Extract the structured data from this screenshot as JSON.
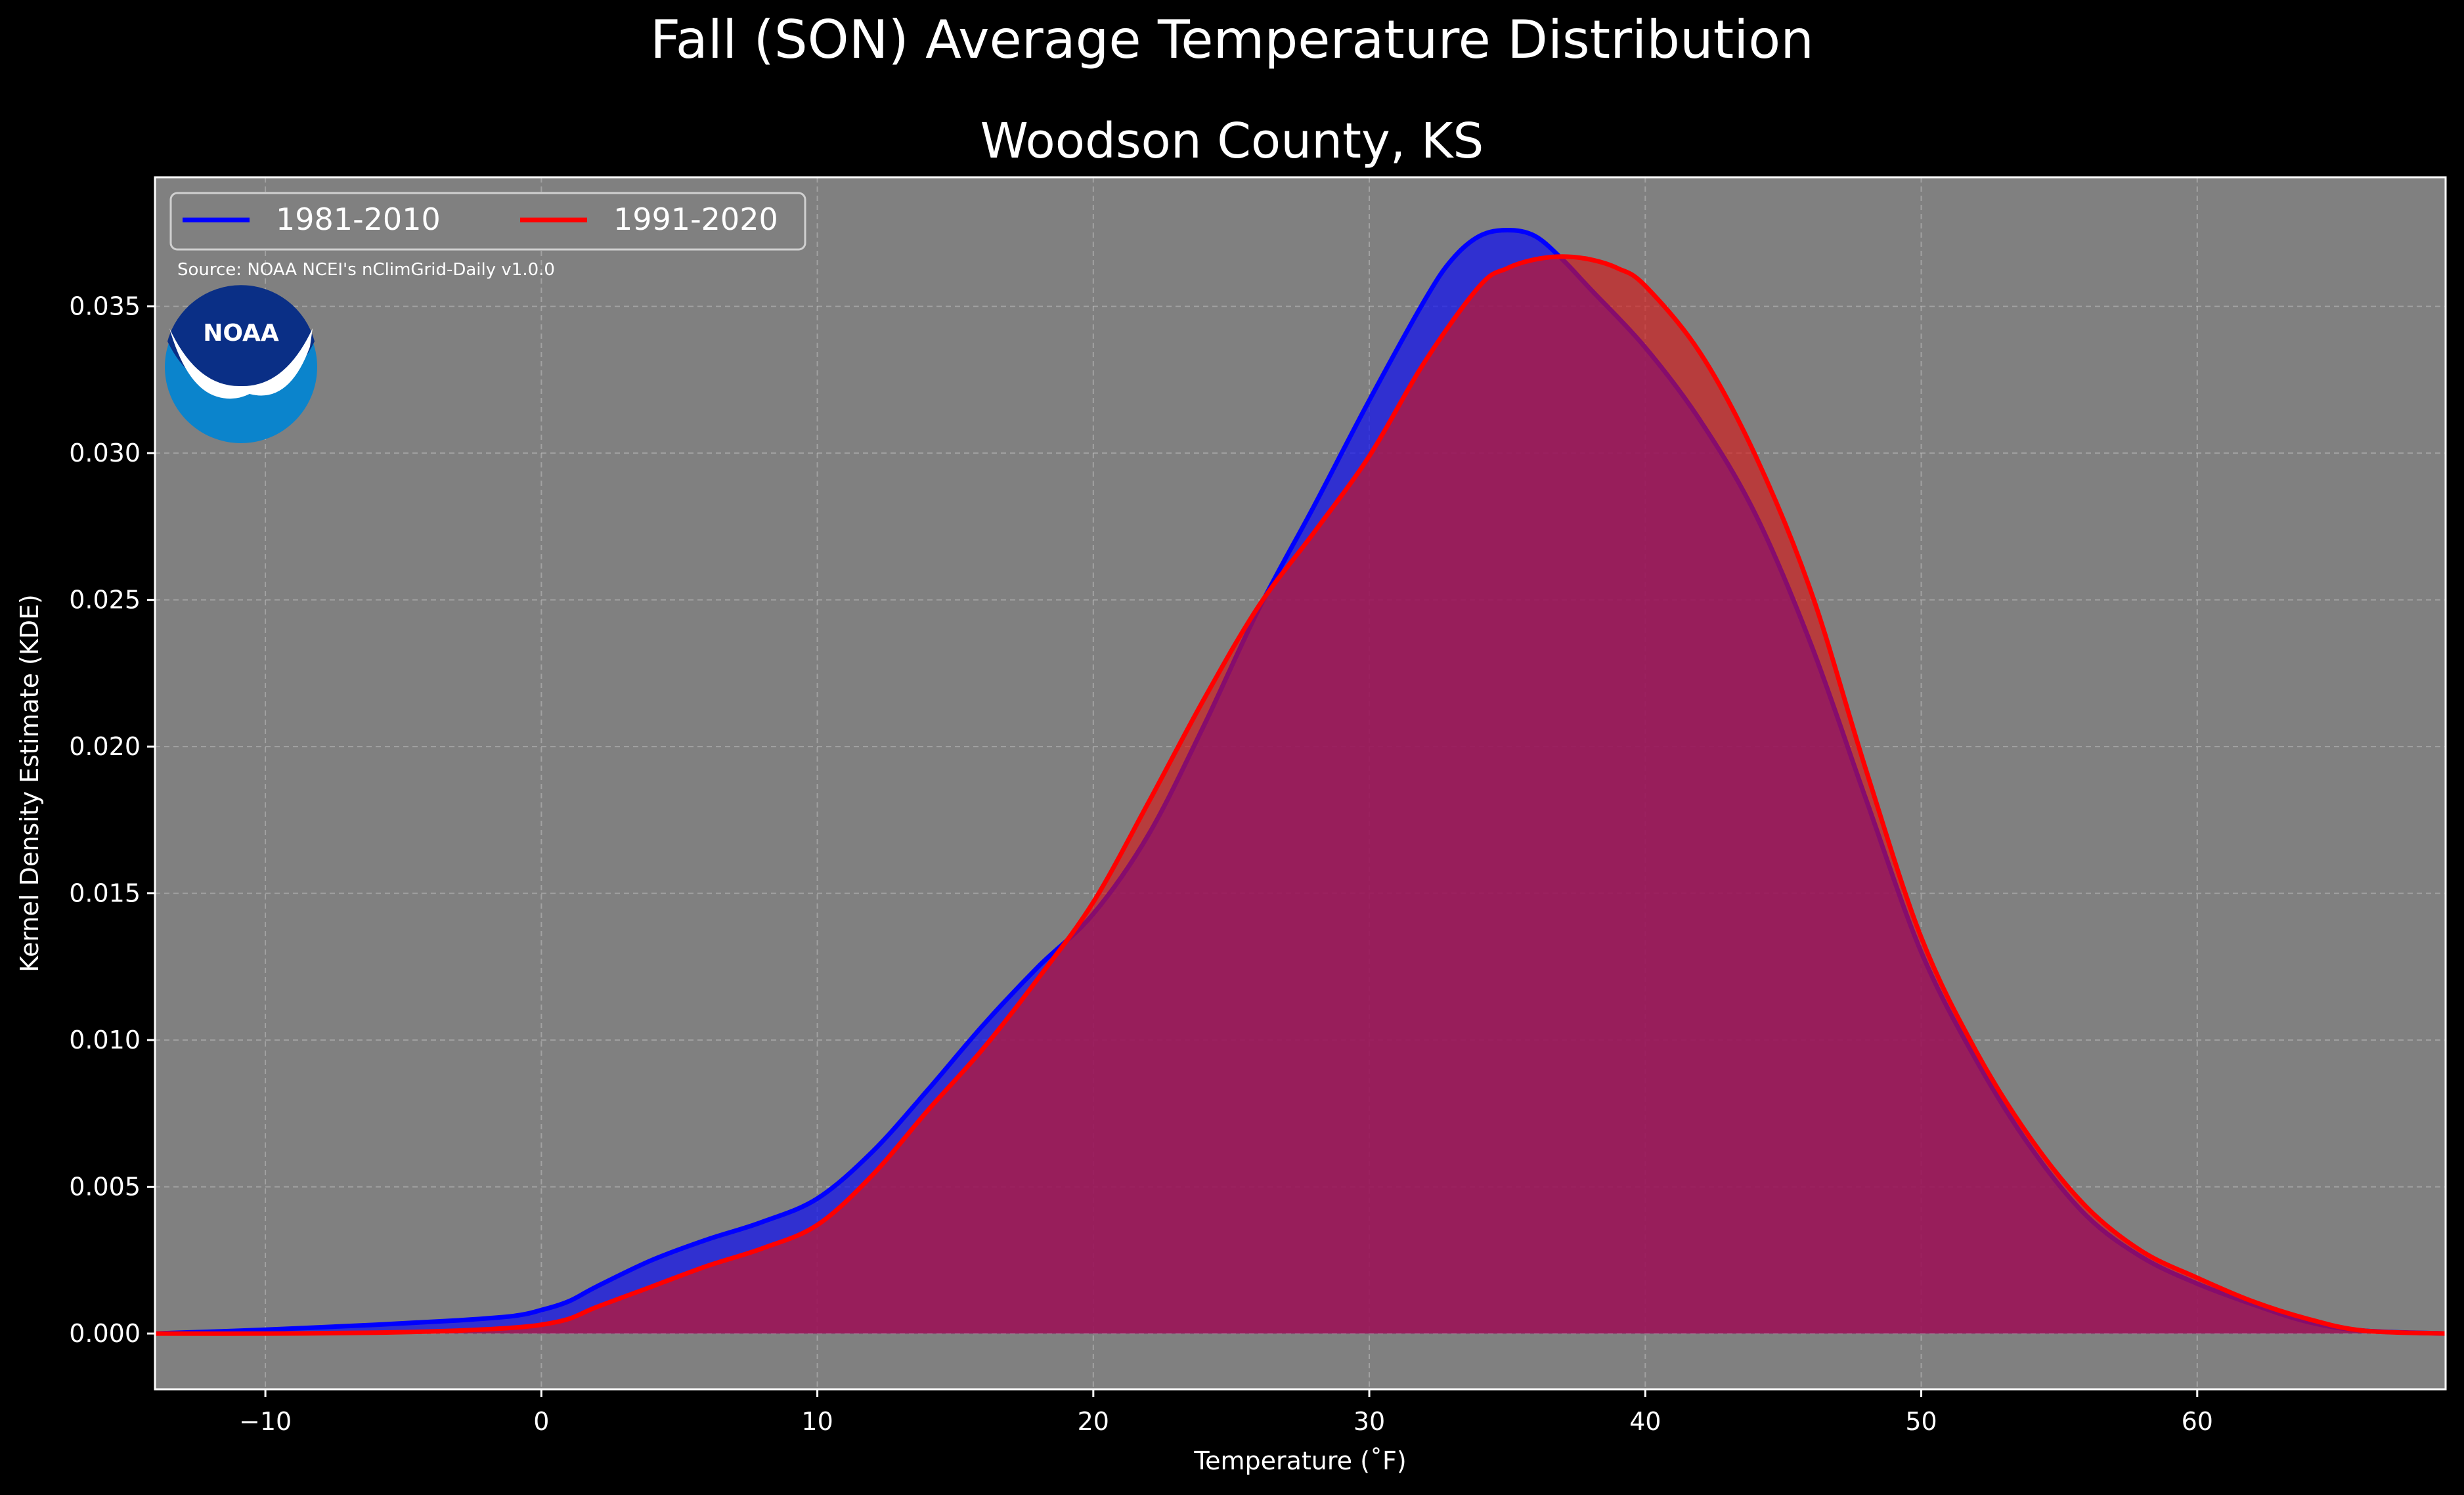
{
  "chart_data": {
    "type": "area",
    "suptitle": "Fall (SON) Average Temperature Distribution",
    "title": "Woodson County, KS",
    "xlabel": "Temperature (˚F)",
    "ylabel": "Kernel Density Estimate (KDE)",
    "xlim": [
      -14,
      69
    ],
    "ylim": [
      -0.0019,
      0.0394
    ],
    "xticks": [
      -10,
      0,
      10,
      20,
      30,
      40,
      50,
      60
    ],
    "xtick_labels": [
      "−10",
      "0",
      "10",
      "20",
      "30",
      "40",
      "50",
      "60"
    ],
    "yticks": [
      0.0,
      0.005,
      0.01,
      0.015,
      0.02,
      0.025,
      0.03,
      0.035
    ],
    "ytick_labels": [
      "0.000",
      "0.005",
      "0.010",
      "0.015",
      "0.020",
      "0.025",
      "0.030",
      "0.035"
    ],
    "grid": true,
    "legend_position": "top-left",
    "source_note": "Source: NOAA NCEI's nClimGrid-Daily v1.0.0",
    "logo_text": "NOAA",
    "colors": {
      "figure_bg": "#000000",
      "axes_bg": "#808080",
      "text": "#ffffff",
      "grid": "#b8b8b8"
    },
    "series": [
      {
        "name": "1981-2010",
        "color": "#0000ff",
        "fill": "#1010ee",
        "x": [
          -14,
          -10,
          -6,
          -3,
          -1,
          0,
          1,
          2,
          4,
          6,
          8,
          10,
          12,
          14,
          16,
          18,
          20,
          22,
          24,
          26,
          28,
          30,
          32,
          33,
          34,
          35,
          36,
          37,
          38,
          40,
          42,
          44,
          46,
          48,
          50,
          52,
          54,
          56,
          58,
          60,
          62,
          64,
          66,
          69
        ],
        "y": [
          0.0,
          0.00013,
          0.0003,
          0.00045,
          0.0006,
          0.0008,
          0.0011,
          0.0016,
          0.0025,
          0.0032,
          0.0038,
          0.0046,
          0.0062,
          0.0083,
          0.0105,
          0.0125,
          0.0143,
          0.017,
          0.0207,
          0.0247,
          0.0282,
          0.0318,
          0.0352,
          0.0366,
          0.0374,
          0.0376,
          0.0374,
          0.0366,
          0.0356,
          0.0336,
          0.0311,
          0.0279,
          0.0235,
          0.0182,
          0.013,
          0.0093,
          0.0063,
          0.004,
          0.0026,
          0.0017,
          0.001,
          0.0004,
          0.0001,
          0.0
        ]
      },
      {
        "name": "1991-2020",
        "color": "#ff0000",
        "fill": "#d81414",
        "x": [
          -14,
          -10,
          -6,
          -3,
          -1,
          0,
          1,
          2,
          4,
          6,
          8,
          10,
          12,
          14,
          16,
          18,
          20,
          22,
          24,
          26,
          28,
          30,
          32,
          34,
          35,
          36,
          37,
          38,
          39,
          40,
          42,
          44,
          46,
          48,
          50,
          52,
          54,
          56,
          58,
          60,
          62,
          64,
          66,
          69
        ],
        "y": [
          0.0,
          0.0,
          3e-05,
          0.0001,
          0.0002,
          0.0003,
          0.0005,
          0.0009,
          0.0016,
          0.0023,
          0.0029,
          0.0037,
          0.0054,
          0.0076,
          0.0097,
          0.0121,
          0.0147,
          0.0181,
          0.0216,
          0.0248,
          0.0273,
          0.0299,
          0.0331,
          0.0357,
          0.0363,
          0.0366,
          0.0367,
          0.0366,
          0.0363,
          0.0357,
          0.0334,
          0.0299,
          0.0253,
          0.0192,
          0.0135,
          0.0096,
          0.0066,
          0.0043,
          0.0028,
          0.0019,
          0.0011,
          0.0005,
          0.0001,
          0.0
        ]
      }
    ]
  }
}
